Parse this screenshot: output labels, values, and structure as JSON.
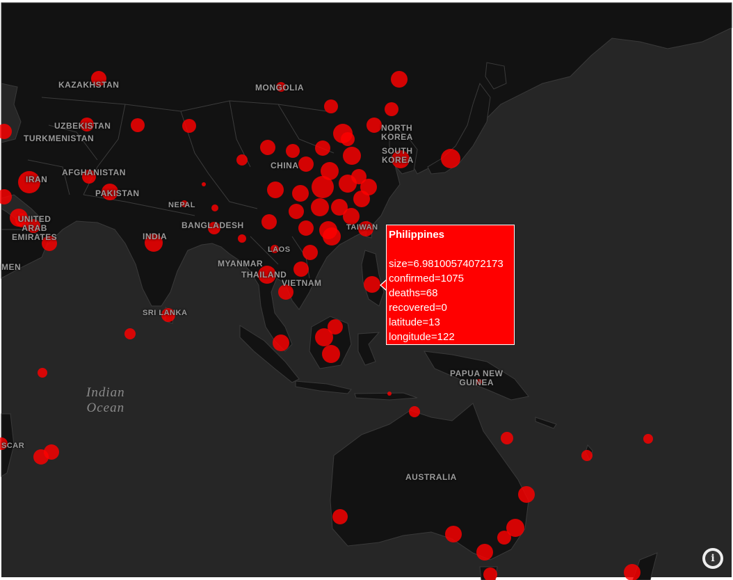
{
  "map": {
    "country_labels": {
      "kazakhstan": "KAZAKHSTAN",
      "mongolia": "MONGOLIA",
      "uzbekistan": "UZBEKISTAN",
      "turkmenistan": "TURKMENISTAN",
      "north_korea": "NORTH\nKOREA",
      "south_korea": "SOUTH\nKOREA",
      "afghanistan": "AFGHANISTAN",
      "china": "CHINA",
      "iran": "IRAN",
      "pakistan": "PAKISTAN",
      "nepal": "NEPAL",
      "uae": "UNITED\nARAB\nEMIRATES",
      "bangladesh": "BANGLADESH",
      "taiwan": "TAIWAN",
      "india": "INDIA",
      "laos": "LAOS",
      "myanmar": "MYANMAR",
      "thailand": "THAILAND",
      "vietnam": "VIETNAM",
      "yemen": "MEN",
      "sri_lanka": "SRI LANKA",
      "papua_new_guinea": "PAPUA NEW\nGUINEA",
      "australia": "AUSTRALIA",
      "madagascar": "SCAR"
    },
    "ocean_labels": {
      "indian_ocean": "Indian\nOcean"
    },
    "marker_color": "#ff0000",
    "background_color": "#262626",
    "land_color": "#121212"
  },
  "tooltip": {
    "title": "Philippines",
    "size": "size=6.98100574072173",
    "confirmed": "confirmed=1075",
    "deaths": "deaths=68",
    "recovered": "recovered=0",
    "latitude": "latitude=13",
    "longitude": "longitude=122"
  },
  "info_button": {
    "icon": "info-icon",
    "glyph": "i"
  }
}
